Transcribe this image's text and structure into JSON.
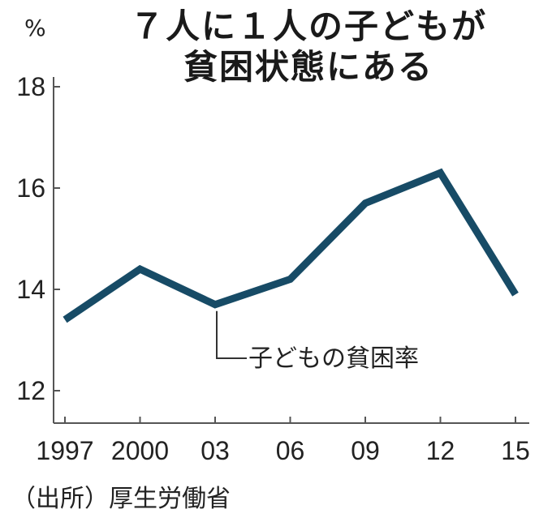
{
  "chart_data": {
    "type": "line",
    "title_lines": [
      "７人に１人の子どもが",
      "貧困状態にある"
    ],
    "unit": "%",
    "categories": [
      "1997",
      "2000",
      "03",
      "06",
      "09",
      "12",
      "15"
    ],
    "series": [
      {
        "name": "子どもの貧困率",
        "values": [
          13.4,
          14.4,
          13.7,
          14.2,
          15.7,
          16.3,
          13.9
        ],
        "color": "#174b66"
      }
    ],
    "y_ticks": [
      12,
      14,
      16,
      18
    ],
    "ylim": [
      11.6,
      18.4
    ],
    "grid": false,
    "source": "（出所）厚生労働省"
  }
}
